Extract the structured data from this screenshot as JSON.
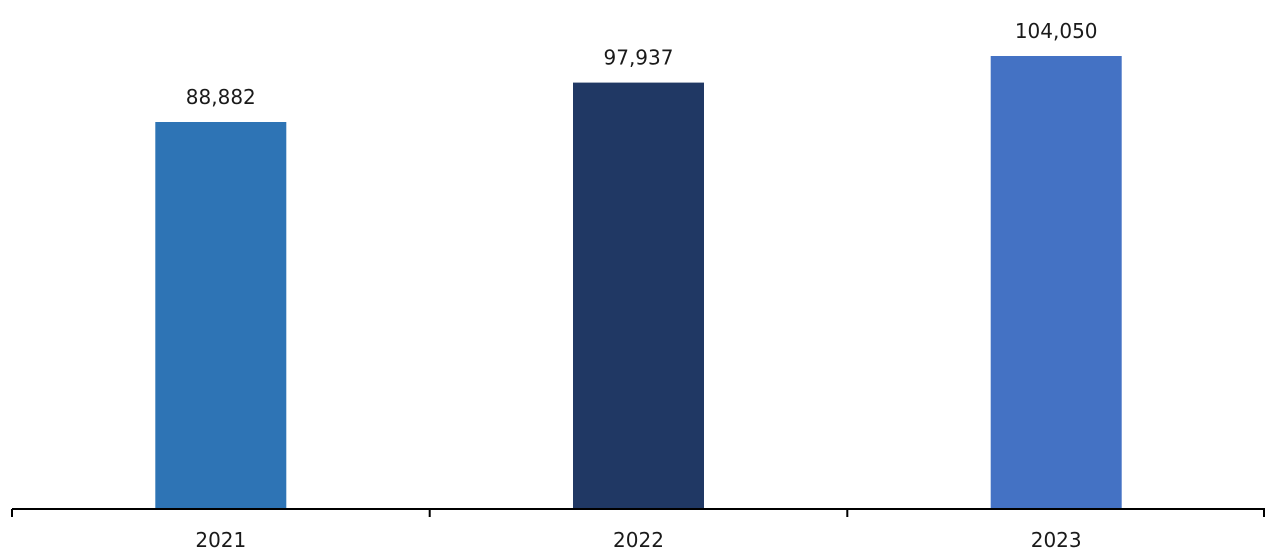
{
  "chart_data": {
    "type": "bar",
    "categories": [
      "2021",
      "2022",
      "2023"
    ],
    "values": [
      88882,
      97937,
      104050
    ],
    "value_labels": [
      "88,882",
      "97,937",
      "104,050"
    ],
    "colors": [
      "#2e74b5",
      "#203864",
      "#4472c4"
    ],
    "ylim": [
      0,
      112000
    ],
    "grid": false,
    "legend": "none"
  }
}
